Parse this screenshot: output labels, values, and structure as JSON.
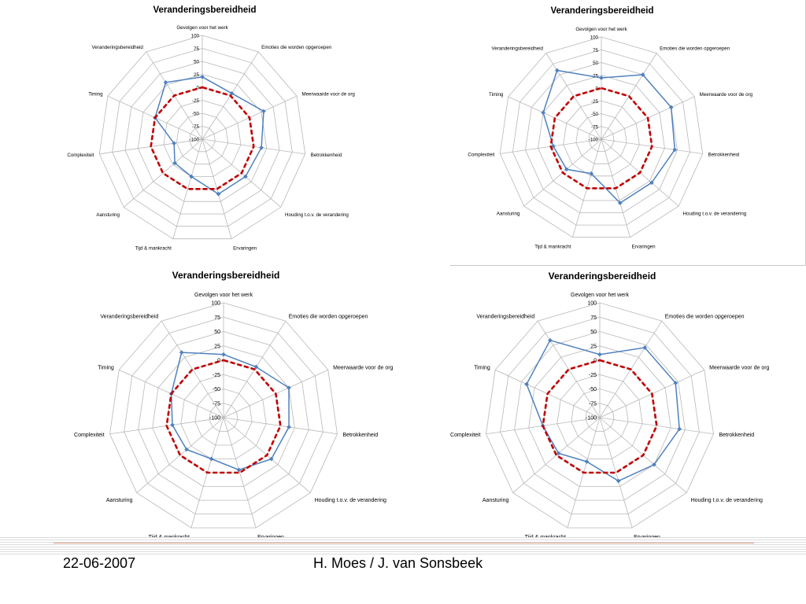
{
  "chart_data": [
    {
      "type": "radar",
      "title": "Veranderingsbereidheid",
      "categories": [
        "Gevolgen voor het werk",
        "Emoties die worden opgeroepen",
        "Meerwaarde voor de org",
        "Betrokkenheid",
        "Houding t.o.v. de verandering",
        "Ervaringen",
        "Tijd & mankracht",
        "Aansturing",
        "Complexiteit",
        "Timing",
        "Veranderingsbereidheid"
      ],
      "rlim": [
        -100,
        100
      ],
      "ticks": [
        "100",
        "75",
        "50",
        "25",
        "0",
        "-25",
        "-50",
        "-75",
        "-100"
      ],
      "series": [
        {
          "values": [
            20,
            5,
            30,
            15,
            10,
            10,
            -25,
            -30,
            -45,
            0,
            30
          ],
          "color": "#4f81bd",
          "style": "solid-markers"
        },
        {
          "values": [
            0,
            0,
            0,
            0,
            0,
            0,
            0,
            0,
            0,
            0,
            0
          ],
          "color": "#c00000",
          "style": "dashed"
        }
      ]
    },
    {
      "type": "radar",
      "title": "Veranderingsbereidheid",
      "categories": [
        "Gevolgen voor het werk",
        "Emoties die worden opgeroepen",
        "Meerwaarde voor de org",
        "Betrokkenheid",
        "Houding t.o.v. de verandering",
        "Ervaringen",
        "Tijd & mankracht",
        "Aansturing",
        "Complexiteit",
        "Timing",
        "Veranderingsbereidheid"
      ],
      "rlim": [
        -100,
        100
      ],
      "ticks": [
        "100",
        "75",
        "50",
        "25",
        "0",
        "-25",
        "-50",
        "-75",
        "-100"
      ],
      "series": [
        {
          "values": [
            20,
            50,
            50,
            45,
            30,
            30,
            -30,
            -10,
            -5,
            25,
            60
          ],
          "color": "#4f81bd",
          "style": "solid-markers"
        },
        {
          "values": [
            0,
            0,
            0,
            0,
            0,
            0,
            0,
            0,
            0,
            0,
            0
          ],
          "color": "#c00000",
          "style": "dashed"
        }
      ]
    },
    {
      "type": "radar",
      "title": "Veranderingsbereidheid",
      "categories": [
        "Gevolgen voor het werk",
        "Emoties die worden opgeroepen",
        "Meerwaarde voor de org",
        "Betrokkenheid",
        "Houding t.o.v. de verandering",
        "Ervaringen",
        "Tijd & mankracht",
        "Aansturing",
        "Complexiteit",
        "Timing",
        "Veranderingsbereidheid"
      ],
      "rlim": [
        -100,
        100
      ],
      "ticks": [
        "100",
        "75",
        "50",
        "25",
        "0",
        "-25",
        "-50",
        "-75",
        "-100"
      ],
      "series": [
        {
          "values": [
            10,
            5,
            25,
            15,
            10,
            -5,
            -25,
            -15,
            -10,
            0,
            35
          ],
          "color": "#4f81bd",
          "style": "solid-markers"
        },
        {
          "values": [
            0,
            0,
            0,
            0,
            0,
            0,
            0,
            0,
            0,
            0,
            0
          ],
          "color": "#c00000",
          "style": "dashed"
        }
      ]
    },
    {
      "type": "radar",
      "title": "Veranderingsbereidheid",
      "categories": [
        "Gevolgen voor het werk",
        "Emoties die worden opgeroepen",
        "Meerwaarde voor de org",
        "Betrokkenheid",
        "Houding t.o.v. de verandering",
        "Ervaringen",
        "Tijd & mankracht",
        "Aansturing",
        "Complexiteit",
        "Timing",
        "Veranderingsbereidheid"
      ],
      "rlim": [
        -100,
        100
      ],
      "ticks": [
        "100",
        "75",
        "50",
        "25",
        "0",
        "-25",
        "-50",
        "-75",
        "-100"
      ],
      "series": [
        {
          "values": [
            10,
            45,
            45,
            40,
            25,
            15,
            -20,
            -5,
            0,
            40,
            60
          ],
          "color": "#4f81bd",
          "style": "solid-markers"
        },
        {
          "values": [
            0,
            0,
            0,
            0,
            0,
            0,
            0,
            0,
            0,
            0,
            0
          ],
          "color": "#c00000",
          "style": "dashed"
        }
      ]
    }
  ],
  "footer": {
    "date": "22-06-2007",
    "author": "H. Moes / J. van Sonsbeek"
  }
}
